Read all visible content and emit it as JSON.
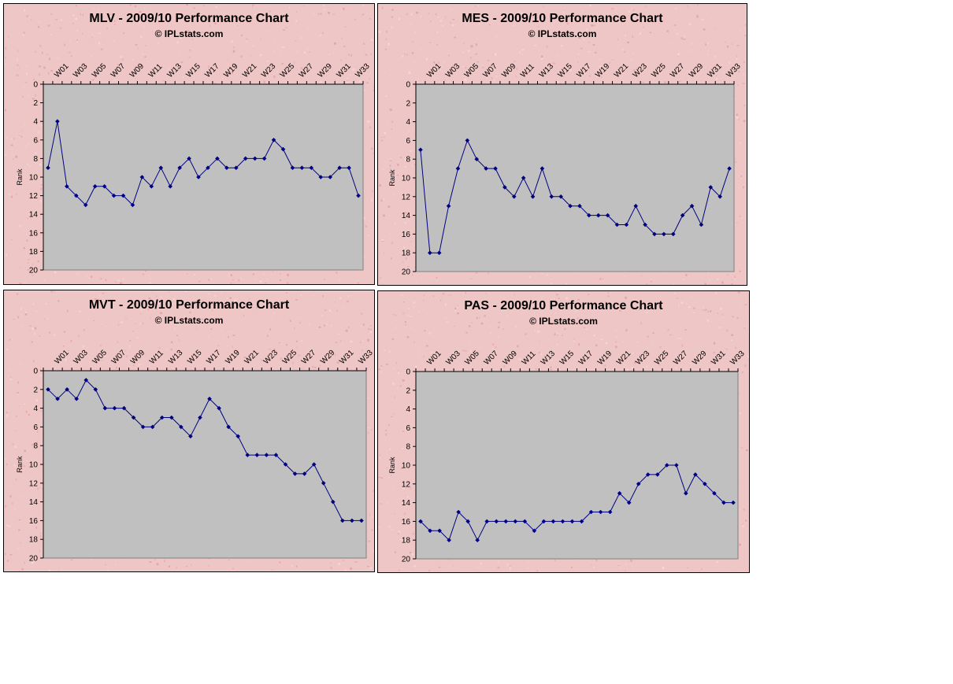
{
  "colors": {
    "panel_bg": "#efc6c6",
    "plot_bg": "#c0c0c0",
    "line": "#000080",
    "axis": "#000000"
  },
  "chart_data": [
    {
      "type": "line",
      "title": "MLV - 2009/10 Performance Chart",
      "subtitle": "© IPLstats.com",
      "ylabel": "Rank",
      "ylim": [
        0,
        20
      ],
      "y_inverted": true,
      "y_ticks": [
        0,
        2,
        4,
        6,
        8,
        10,
        12,
        14,
        16,
        18,
        20
      ],
      "x_tick_labels": [
        "W01",
        "W03",
        "W05",
        "W07",
        "W09",
        "W11",
        "W13",
        "W15",
        "W17",
        "W19",
        "W21",
        "W23",
        "W25",
        "W27",
        "W29",
        "W31",
        "W33"
      ],
      "x": [
        "W00",
        "W01",
        "W02",
        "W03",
        "W04",
        "W05",
        "W06",
        "W07",
        "W08",
        "W09",
        "W10",
        "W11",
        "W12",
        "W13",
        "W14",
        "W15",
        "W16",
        "W17",
        "W18",
        "W19",
        "W20",
        "W21",
        "W22",
        "W23",
        "W24",
        "W25",
        "W26",
        "W27",
        "W28",
        "W29",
        "W30",
        "W31",
        "W32",
        "W33"
      ],
      "series": [
        {
          "values": [
            9,
            4,
            11,
            12,
            13,
            11,
            11,
            12,
            12,
            13,
            10,
            11,
            9,
            11,
            9,
            8,
            10,
            9,
            8,
            9,
            9,
            8,
            8,
            8,
            6,
            7,
            9,
            9,
            9,
            10,
            10,
            9,
            9,
            12
          ]
        }
      ]
    },
    {
      "type": "line",
      "title": "MES - 2009/10 Performance Chart",
      "subtitle": "© IPLstats.com",
      "ylabel": "Rank",
      "ylim": [
        0,
        20
      ],
      "y_inverted": true,
      "y_ticks": [
        0,
        2,
        4,
        6,
        8,
        10,
        12,
        14,
        16,
        18,
        20
      ],
      "x_tick_labels": [
        "W01",
        "W03",
        "W05",
        "W07",
        "W09",
        "W11",
        "W13",
        "W15",
        "W17",
        "W19",
        "W21",
        "W23",
        "W25",
        "W27",
        "W29",
        "W31",
        "W33"
      ],
      "x": [
        "W00",
        "W01",
        "W02",
        "W03",
        "W04",
        "W05",
        "W06",
        "W07",
        "W08",
        "W09",
        "W10",
        "W11",
        "W12",
        "W13",
        "W14",
        "W15",
        "W16",
        "W17",
        "W18",
        "W19",
        "W20",
        "W21",
        "W22",
        "W23",
        "W24",
        "W25",
        "W26",
        "W27",
        "W28",
        "W29",
        "W30",
        "W31",
        "W32",
        "W33"
      ],
      "series": [
        {
          "values": [
            7,
            18,
            18,
            13,
            9,
            6,
            8,
            9,
            9,
            11,
            12,
            10,
            12,
            9,
            12,
            12,
            13,
            13,
            14,
            14,
            14,
            15,
            15,
            13,
            15,
            16,
            16,
            16,
            14,
            13,
            15,
            11,
            12,
            9
          ]
        }
      ]
    },
    {
      "type": "line",
      "title": "MVT - 2009/10 Performance Chart",
      "subtitle": "© IPLstats.com",
      "ylabel": "Rank",
      "ylim": [
        0,
        20
      ],
      "y_inverted": true,
      "y_ticks": [
        0,
        2,
        4,
        6,
        8,
        10,
        12,
        14,
        16,
        18,
        20
      ],
      "x_tick_labels": [
        "W01",
        "W03",
        "W05",
        "W07",
        "W09",
        "W11",
        "W13",
        "W15",
        "W17",
        "W19",
        "W21",
        "W23",
        "W25",
        "W27",
        "W29",
        "W31",
        "W33"
      ],
      "x": [
        "W00",
        "W01",
        "W02",
        "W03",
        "W04",
        "W05",
        "W06",
        "W07",
        "W08",
        "W09",
        "W10",
        "W11",
        "W12",
        "W13",
        "W14",
        "W15",
        "W16",
        "W17",
        "W18",
        "W19",
        "W20",
        "W21",
        "W22",
        "W23",
        "W24",
        "W25",
        "W26",
        "W27",
        "W28",
        "W29",
        "W30",
        "W31",
        "W32",
        "W33"
      ],
      "series": [
        {
          "values": [
            2,
            3,
            2,
            3,
            1,
            2,
            4,
            4,
            4,
            5,
            6,
            6,
            5,
            5,
            6,
            7,
            5,
            3,
            4,
            6,
            7,
            9,
            9,
            9,
            9,
            10,
            11,
            11,
            10,
            12,
            14,
            16,
            16,
            16
          ]
        }
      ]
    },
    {
      "type": "line",
      "title": "PAS - 2009/10 Performance Chart",
      "subtitle": "© IPLstats.com",
      "ylabel": "Rank",
      "ylim": [
        0,
        20
      ],
      "y_inverted": true,
      "y_ticks": [
        0,
        2,
        4,
        6,
        8,
        10,
        12,
        14,
        16,
        18,
        20
      ],
      "x_tick_labels": [
        "W01",
        "W03",
        "W05",
        "W07",
        "W09",
        "W11",
        "W13",
        "W15",
        "W17",
        "W19",
        "W21",
        "W23",
        "W25",
        "W27",
        "W29",
        "W31",
        "W33"
      ],
      "x": [
        "W00",
        "W01",
        "W02",
        "W03",
        "W04",
        "W05",
        "W06",
        "W07",
        "W08",
        "W09",
        "W10",
        "W11",
        "W12",
        "W13",
        "W14",
        "W15",
        "W16",
        "W17",
        "W18",
        "W19",
        "W20",
        "W21",
        "W22",
        "W23",
        "W24",
        "W25",
        "W26",
        "W27",
        "W28",
        "W29",
        "W30",
        "W31",
        "W32",
        "W33"
      ],
      "series": [
        {
          "values": [
            16,
            17,
            17,
            18,
            15,
            16,
            18,
            16,
            16,
            16,
            16,
            16,
            17,
            16,
            16,
            16,
            16,
            16,
            15,
            15,
            15,
            13,
            14,
            12,
            11,
            11,
            10,
            10,
            13,
            11,
            12,
            13,
            14,
            14
          ]
        }
      ]
    }
  ]
}
